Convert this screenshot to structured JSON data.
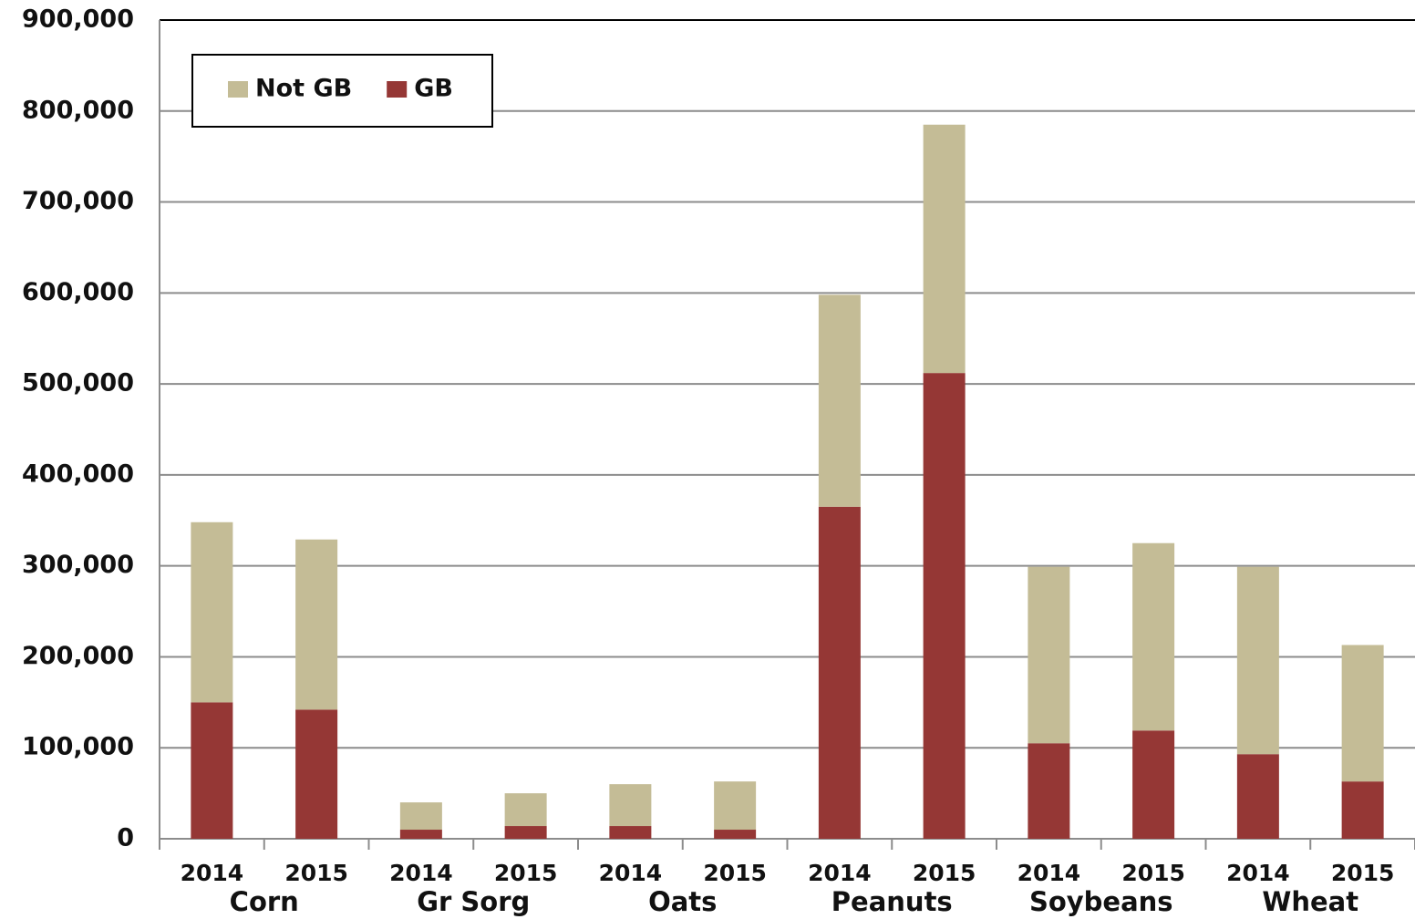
{
  "chart_data": {
    "type": "stacked_bar",
    "groups": [
      "Corn",
      "Gr Sorg",
      "Oats",
      "Peanuts",
      "Soybeans",
      "Wheat"
    ],
    "categories": [
      "2014",
      "2015",
      "2014",
      "2015",
      "2014",
      "2015",
      "2014",
      "2015",
      "2014",
      "2015",
      "2014",
      "2015"
    ],
    "series": [
      {
        "name": "Not GB",
        "color": "#c4bc96",
        "values": [
          198000,
          187000,
          30000,
          36000,
          46000,
          53000,
          233000,
          273000,
          194000,
          206000,
          206000,
          150000
        ]
      },
      {
        "name": "GB",
        "color": "#953735",
        "values": [
          150000,
          142000,
          10000,
          14000,
          14000,
          10000,
          365000,
          512000,
          105000,
          119000,
          93000,
          63000
        ]
      }
    ],
    "ylim": [
      0,
      900000
    ],
    "yticks": [
      0,
      {
        "value": 100000,
        "label": "100,000"
      },
      {
        "value": 200000,
        "label": "200,000"
      },
      {
        "value": 300000,
        "label": "300,000"
      },
      {
        "value": 400000,
        "label": "400,000"
      },
      {
        "value": 500000,
        "label": "500,000"
      },
      {
        "value": 600000,
        "label": "600,000"
      },
      {
        "value": 700000,
        "label": "700,000"
      },
      {
        "value": 800000,
        "label": "800,000"
      },
      {
        "value": 900000,
        "label": "900,000"
      }
    ],
    "grid": true,
    "legend": "top-left"
  }
}
